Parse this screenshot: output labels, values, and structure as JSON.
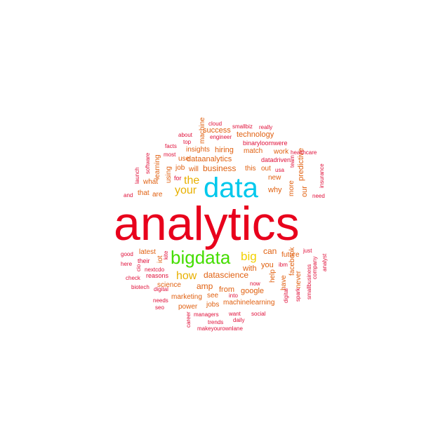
{
  "colors": {
    "red": "#e8001c",
    "crimson": "#e0103a",
    "orange": "#e06010",
    "gold": "#e8b000",
    "yellow": "#f2d000",
    "green": "#44dd00",
    "cyan": "#00c8ec",
    "background": "#ffffff"
  },
  "words": [
    {
      "text": "analytics",
      "color": "red"
    },
    {
      "text": "data",
      "color": "cyan"
    },
    {
      "text": "bigdata",
      "color": "green"
    },
    {
      "text": "big",
      "color": "yellow"
    },
    {
      "text": "the",
      "color": "gold"
    },
    {
      "text": "your",
      "color": "gold"
    },
    {
      "text": "how",
      "color": "gold"
    },
    {
      "text": "datascience",
      "color": "orange"
    },
    {
      "text": "amp",
      "color": "orange"
    },
    {
      "text": "business",
      "color": "orange"
    },
    {
      "text": "dataanalytics",
      "color": "orange"
    },
    {
      "text": "can",
      "color": "orange"
    },
    {
      "text": "you",
      "color": "orange"
    },
    {
      "text": "google",
      "color": "orange"
    },
    {
      "text": "from",
      "color": "orange"
    },
    {
      "text": "with",
      "color": "orange"
    },
    {
      "text": "why",
      "color": "orange"
    },
    {
      "text": "predictive",
      "color": "orange"
    },
    {
      "text": "our",
      "color": "orange"
    },
    {
      "text": "hiring",
      "color": "orange"
    },
    {
      "text": "insights",
      "color": "orange"
    },
    {
      "text": "success",
      "color": "orange"
    },
    {
      "text": "technology",
      "color": "orange"
    },
    {
      "text": "match",
      "color": "orange"
    },
    {
      "text": "job",
      "color": "orange"
    },
    {
      "text": "will",
      "color": "orange"
    },
    {
      "text": "this",
      "color": "orange"
    },
    {
      "text": "out",
      "color": "orange"
    },
    {
      "text": "are",
      "color": "orange"
    },
    {
      "text": "latest",
      "color": "orange"
    },
    {
      "text": "iot",
      "color": "orange"
    },
    {
      "text": "science",
      "color": "orange"
    },
    {
      "text": "using",
      "color": "orange"
    },
    {
      "text": "machine",
      "color": "orange"
    },
    {
      "text": "use",
      "color": "orange"
    },
    {
      "text": "work",
      "color": "orange"
    },
    {
      "text": "new",
      "color": "orange"
    },
    {
      "text": "more",
      "color": "orange"
    },
    {
      "text": "help",
      "color": "orange"
    },
    {
      "text": "have",
      "color": "orange"
    },
    {
      "text": "facebook",
      "color": "orange"
    },
    {
      "text": "never",
      "color": "orange"
    },
    {
      "text": "future",
      "color": "orange"
    },
    {
      "text": "machinelearning",
      "color": "orange"
    },
    {
      "text": "power",
      "color": "orange"
    },
    {
      "text": "marketing",
      "color": "orange"
    },
    {
      "text": "jobs",
      "color": "orange"
    },
    {
      "text": "see",
      "color": "orange"
    },
    {
      "text": "learning",
      "color": "orange"
    },
    {
      "text": "what",
      "color": "orange"
    },
    {
      "text": "that",
      "color": "orange"
    },
    {
      "text": "reasons",
      "color": "crimson"
    },
    {
      "text": "their",
      "color": "crimson"
    },
    {
      "text": "for",
      "color": "crimson"
    },
    {
      "text": "binaryloomwere",
      "color": "crimson"
    },
    {
      "text": "datadriven",
      "color": "crimson"
    },
    {
      "text": "smallbiz",
      "color": "crimson"
    },
    {
      "text": "really",
      "color": "crimson"
    },
    {
      "text": "cloud",
      "color": "crimson"
    },
    {
      "text": "engineer",
      "color": "crimson"
    },
    {
      "text": "about",
      "color": "crimson"
    },
    {
      "text": "top",
      "color": "crimson"
    },
    {
      "text": "facts",
      "color": "crimson"
    },
    {
      "text": "most",
      "color": "crimson"
    },
    {
      "text": "software",
      "color": "crimson"
    },
    {
      "text": "launch",
      "color": "crimson"
    },
    {
      "text": "healthcare",
      "color": "crimson"
    },
    {
      "text": "team",
      "color": "crimson"
    },
    {
      "text": "usa",
      "color": "crimson"
    },
    {
      "text": "insurance",
      "color": "crimson"
    },
    {
      "text": "need",
      "color": "crimson"
    },
    {
      "text": "and",
      "color": "crimson"
    },
    {
      "text": "good",
      "color": "crimson"
    },
    {
      "text": "here",
      "color": "crimson"
    },
    {
      "text": "kite",
      "color": "crimson"
    },
    {
      "text": "nextcdo",
      "color": "crimson"
    },
    {
      "text": "cio",
      "color": "crimson"
    },
    {
      "text": "check",
      "color": "crimson"
    },
    {
      "text": "biotech",
      "color": "crimson"
    },
    {
      "text": "digital",
      "color": "crimson"
    },
    {
      "text": "needs",
      "color": "crimson"
    },
    {
      "text": "seo",
      "color": "crimson"
    },
    {
      "text": "career",
      "color": "crimson"
    },
    {
      "text": "managers",
      "color": "crimson"
    },
    {
      "text": "trends",
      "color": "crimson"
    },
    {
      "text": "makeyourownlane",
      "color": "crimson"
    },
    {
      "text": "want",
      "color": "crimson"
    },
    {
      "text": "daily",
      "color": "crimson"
    },
    {
      "text": "into",
      "color": "crimson"
    },
    {
      "text": "social",
      "color": "crimson"
    },
    {
      "text": "now",
      "color": "crimson"
    },
    {
      "text": "ibm",
      "color": "crimson"
    },
    {
      "text": "digital",
      "color": "crimson"
    },
    {
      "text": "spark",
      "color": "crimson"
    },
    {
      "text": "smallbusiness",
      "color": "crimson"
    },
    {
      "text": "company",
      "color": "crimson"
    },
    {
      "text": "analyst",
      "color": "crimson"
    },
    {
      "text": "just",
      "color": "crimson"
    }
  ]
}
